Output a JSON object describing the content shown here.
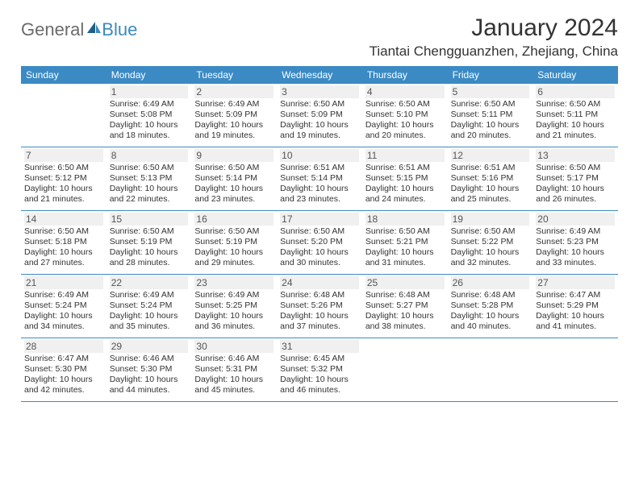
{
  "brand": {
    "part1": "General",
    "part2": "Blue"
  },
  "title": "January 2024",
  "location": "Tiantai Chengguanzhen, Zhejiang, China",
  "colors": {
    "header_bg": "#3b8ac4",
    "header_text": "#ffffff",
    "daynum_bg": "#f0f0f0",
    "text": "#333333",
    "logo_gray": "#6b6b6b",
    "logo_blue": "#3b8ac4",
    "rule": "#3b8ac4"
  },
  "day_labels": [
    "Sunday",
    "Monday",
    "Tuesday",
    "Wednesday",
    "Thursday",
    "Friday",
    "Saturday"
  ],
  "weeks": [
    [
      null,
      {
        "n": "1",
        "r": "6:49 AM",
        "s": "5:08 PM",
        "d": "10 hours and 18 minutes."
      },
      {
        "n": "2",
        "r": "6:49 AM",
        "s": "5:09 PM",
        "d": "10 hours and 19 minutes."
      },
      {
        "n": "3",
        "r": "6:50 AM",
        "s": "5:09 PM",
        "d": "10 hours and 19 minutes."
      },
      {
        "n": "4",
        "r": "6:50 AM",
        "s": "5:10 PM",
        "d": "10 hours and 20 minutes."
      },
      {
        "n": "5",
        "r": "6:50 AM",
        "s": "5:11 PM",
        "d": "10 hours and 20 minutes."
      },
      {
        "n": "6",
        "r": "6:50 AM",
        "s": "5:11 PM",
        "d": "10 hours and 21 minutes."
      }
    ],
    [
      {
        "n": "7",
        "r": "6:50 AM",
        "s": "5:12 PM",
        "d": "10 hours and 21 minutes."
      },
      {
        "n": "8",
        "r": "6:50 AM",
        "s": "5:13 PM",
        "d": "10 hours and 22 minutes."
      },
      {
        "n": "9",
        "r": "6:50 AM",
        "s": "5:14 PM",
        "d": "10 hours and 23 minutes."
      },
      {
        "n": "10",
        "r": "6:51 AM",
        "s": "5:14 PM",
        "d": "10 hours and 23 minutes."
      },
      {
        "n": "11",
        "r": "6:51 AM",
        "s": "5:15 PM",
        "d": "10 hours and 24 minutes."
      },
      {
        "n": "12",
        "r": "6:51 AM",
        "s": "5:16 PM",
        "d": "10 hours and 25 minutes."
      },
      {
        "n": "13",
        "r": "6:50 AM",
        "s": "5:17 PM",
        "d": "10 hours and 26 minutes."
      }
    ],
    [
      {
        "n": "14",
        "r": "6:50 AM",
        "s": "5:18 PM",
        "d": "10 hours and 27 minutes."
      },
      {
        "n": "15",
        "r": "6:50 AM",
        "s": "5:19 PM",
        "d": "10 hours and 28 minutes."
      },
      {
        "n": "16",
        "r": "6:50 AM",
        "s": "5:19 PM",
        "d": "10 hours and 29 minutes."
      },
      {
        "n": "17",
        "r": "6:50 AM",
        "s": "5:20 PM",
        "d": "10 hours and 30 minutes."
      },
      {
        "n": "18",
        "r": "6:50 AM",
        "s": "5:21 PM",
        "d": "10 hours and 31 minutes."
      },
      {
        "n": "19",
        "r": "6:50 AM",
        "s": "5:22 PM",
        "d": "10 hours and 32 minutes."
      },
      {
        "n": "20",
        "r": "6:49 AM",
        "s": "5:23 PM",
        "d": "10 hours and 33 minutes."
      }
    ],
    [
      {
        "n": "21",
        "r": "6:49 AM",
        "s": "5:24 PM",
        "d": "10 hours and 34 minutes."
      },
      {
        "n": "22",
        "r": "6:49 AM",
        "s": "5:24 PM",
        "d": "10 hours and 35 minutes."
      },
      {
        "n": "23",
        "r": "6:49 AM",
        "s": "5:25 PM",
        "d": "10 hours and 36 minutes."
      },
      {
        "n": "24",
        "r": "6:48 AM",
        "s": "5:26 PM",
        "d": "10 hours and 37 minutes."
      },
      {
        "n": "25",
        "r": "6:48 AM",
        "s": "5:27 PM",
        "d": "10 hours and 38 minutes."
      },
      {
        "n": "26",
        "r": "6:48 AM",
        "s": "5:28 PM",
        "d": "10 hours and 40 minutes."
      },
      {
        "n": "27",
        "r": "6:47 AM",
        "s": "5:29 PM",
        "d": "10 hours and 41 minutes."
      }
    ],
    [
      {
        "n": "28",
        "r": "6:47 AM",
        "s": "5:30 PM",
        "d": "10 hours and 42 minutes."
      },
      {
        "n": "29",
        "r": "6:46 AM",
        "s": "5:30 PM",
        "d": "10 hours and 44 minutes."
      },
      {
        "n": "30",
        "r": "6:46 AM",
        "s": "5:31 PM",
        "d": "10 hours and 45 minutes."
      },
      {
        "n": "31",
        "r": "6:45 AM",
        "s": "5:32 PM",
        "d": "10 hours and 46 minutes."
      },
      null,
      null,
      null
    ]
  ],
  "labels": {
    "sunrise": "Sunrise:",
    "sunset": "Sunset:",
    "daylight": "Daylight:"
  }
}
